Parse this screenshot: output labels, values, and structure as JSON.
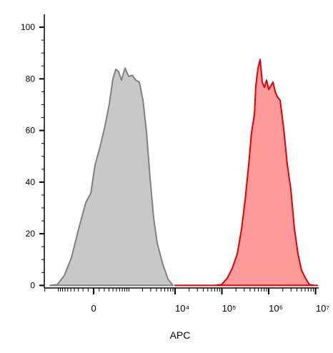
{
  "chart_data": {
    "type": "histogram-overlay",
    "x_label": "APC",
    "xscale": "biexponential",
    "xlim": [
      -2046,
      11700000
    ],
    "xticks": [
      0,
      {
        "value": 10000,
        "label": "10⁴"
      },
      {
        "value": 100000,
        "label": "10⁵"
      },
      {
        "value": 1000000,
        "label": "10⁶"
      },
      {
        "value": 10000000,
        "label": "10⁷"
      }
    ],
    "xminorticks": [
      -2000,
      -1000,
      -900,
      -800,
      -700,
      -600,
      -500,
      -400,
      -300,
      -200,
      -100,
      100,
      200,
      300,
      400,
      500,
      600,
      700,
      800,
      900,
      1000,
      2000,
      3000,
      4000,
      5000,
      6000,
      7000,
      8000,
      9000,
      20000,
      30000,
      40000,
      50000,
      60000,
      70000,
      80000,
      90000,
      200000,
      300000,
      400000,
      500000,
      600000,
      700000,
      800000,
      900000,
      2000000,
      3000000,
      4000000,
      5000000,
      6000000,
      7000000,
      8000000,
      9000000
    ],
    "ylim": [
      -1,
      105
    ],
    "yticks": [
      0,
      20,
      40,
      60,
      80,
      100
    ],
    "yminorticks": [
      5,
      10,
      15,
      25,
      30,
      35,
      45,
      50,
      55,
      65,
      70,
      75,
      85,
      90,
      95
    ],
    "series": [
      {
        "color": "#808080",
        "fill": "#c8c8c8",
        "x": [
          -1532,
          -1060,
          -724,
          -481,
          -294,
          -144,
          -51,
          26,
          117,
          216,
          310,
          399,
          481,
          568,
          668,
          815,
          986,
          1187,
          1424,
          1707,
          2046,
          2439,
          2916,
          3480,
          4150,
          5500,
          7025,
          8990
        ],
        "values": [
          0,
          0.3,
          3.9,
          10.8,
          21.9,
          32.1,
          35.7,
          46.8,
          53.7,
          62.0,
          70.4,
          80.1,
          83.7,
          82.8,
          79.5,
          84.2,
          80.9,
          81.4,
          79.5,
          78.7,
          71.7,
          59.3,
          41.3,
          26.0,
          16.3,
          8.0,
          2.5,
          0
        ]
      },
      {
        "color": "#e00000",
        "fill": "#ff9a9a",
        "x": [
          10000,
          69160,
          98300,
          130100,
          166500,
          213100,
          263200,
          313400,
          373800,
          429900,
          495200,
          530700,
          590200,
          655700,
          728500,
          809500,
          899800,
          1000000,
          1111000,
          1235000,
          1372000,
          1524000,
          1755000,
          2093000,
          2493000,
          2974000,
          3545000,
          4226000,
          5038000,
          6219000,
          7407000,
          9482000,
          11000000
        ],
        "values": [
          0,
          0,
          0.3,
          2.8,
          6.6,
          12.2,
          21.9,
          33.0,
          46.8,
          59.3,
          66.2,
          77.3,
          84.2,
          87.5,
          78.7,
          76.7,
          79.5,
          75.9,
          77.3,
          78.7,
          75.1,
          73.1,
          71.7,
          60.7,
          46.8,
          37.1,
          21.9,
          12.2,
          5.8,
          2.5,
          0.3,
          0,
          0
        ]
      }
    ]
  }
}
